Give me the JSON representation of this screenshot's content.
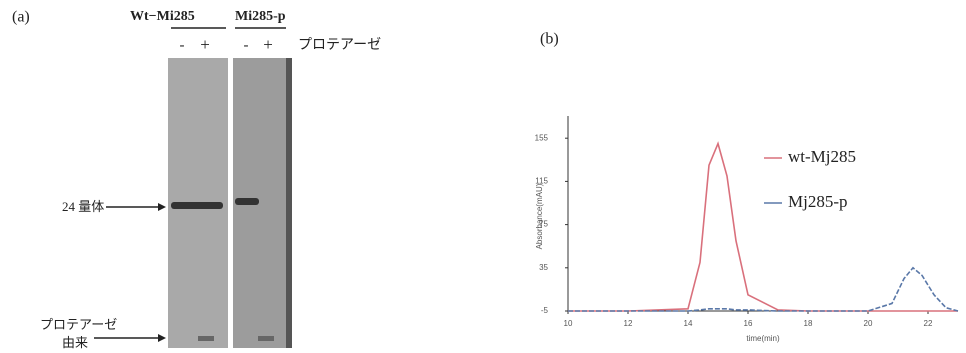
{
  "panel_a": {
    "label": "(a)",
    "group1": "Wt−Mi285",
    "group2": "Mi285-p",
    "lanes": [
      "-",
      "+",
      "-",
      "+"
    ],
    "treatment": "プロテアーゼ",
    "band1": "24 量体",
    "band2_line1": "プロテアーゼ",
    "band2_line2": "由来"
  },
  "chart_data": {
    "type": "line",
    "title": "(b)",
    "x_label": "time(min)",
    "y_label": "Absorbance(mAU)",
    "x": [
      10,
      12,
      14,
      14.4,
      14.7,
      15,
      15.3,
      15.6,
      16,
      17,
      18,
      20,
      20.8,
      21.2,
      21.5,
      21.8,
      22.2,
      22.6,
      23
    ],
    "series": [
      {
        "name": "wt-Mj285",
        "color": "#d9707c",
        "values": [
          -5,
          -5,
          -3,
          40,
          130,
          150,
          120,
          60,
          10,
          -4,
          -5,
          -5,
          -5,
          -5,
          -5,
          -5,
          -5,
          -5,
          -5
        ]
      },
      {
        "name": "Mj285-p",
        "color": "#5a78a8",
        "values": [
          -5,
          -5,
          -5,
          -4,
          -3,
          -3,
          -3,
          -4,
          -4,
          -5,
          -5,
          -5,
          2,
          25,
          35,
          28,
          10,
          -2,
          -5
        ]
      }
    ],
    "xlim": [
      10,
      23
    ],
    "ylim": [
      -5,
      170
    ],
    "xticks": [
      10,
      12,
      14,
      16,
      18,
      20,
      22
    ],
    "yticks": [
      -5,
      35,
      75,
      115,
      155
    ]
  }
}
